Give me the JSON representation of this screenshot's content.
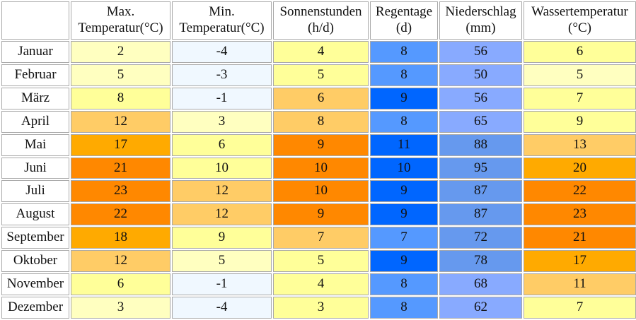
{
  "columns": [
    {
      "line1": "Max.",
      "line2": "Temperatur(°C)"
    },
    {
      "line1": "Min.",
      "line2": "Temperatur(°C)"
    },
    {
      "line1": "Sonnenstunden",
      "line2": "(h/d)"
    },
    {
      "line1": "Regentage",
      "line2": "(d)"
    },
    {
      "line1": "Niederschlag",
      "line2": "(mm)"
    },
    {
      "line1": "Wassertemperatur",
      "line2": "(°C)"
    }
  ],
  "rows": [
    {
      "month": "Januar",
      "values": [
        "2",
        "-4",
        "4",
        "8",
        "56",
        "6"
      ],
      "colors": [
        "#ffffc0",
        "#f0f8ff",
        "#ffff99",
        "#5599ff",
        "#88aaff",
        "#ffff99"
      ]
    },
    {
      "month": "Februar",
      "values": [
        "5",
        "-3",
        "5",
        "8",
        "50",
        "5"
      ],
      "colors": [
        "#ffffc0",
        "#f0f8ff",
        "#ffff99",
        "#5599ff",
        "#88aaff",
        "#ffffc0"
      ]
    },
    {
      "month": "März",
      "values": [
        "8",
        "-1",
        "6",
        "9",
        "56",
        "7"
      ],
      "colors": [
        "#ffff99",
        "#f0f8ff",
        "#ffcc66",
        "#0066ff",
        "#88aaff",
        "#ffff99"
      ]
    },
    {
      "month": "April",
      "values": [
        "12",
        "3",
        "8",
        "8",
        "65",
        "9"
      ],
      "colors": [
        "#ffcc66",
        "#ffffc0",
        "#ffcc66",
        "#5599ff",
        "#88aaff",
        "#ffff99"
      ]
    },
    {
      "month": "Mai",
      "values": [
        "17",
        "6",
        "9",
        "11",
        "88",
        "13"
      ],
      "colors": [
        "#ffaa00",
        "#ffff99",
        "#ff8800",
        "#0066ff",
        "#6699ee",
        "#ffcc66"
      ]
    },
    {
      "month": "Juni",
      "values": [
        "21",
        "10",
        "10",
        "10",
        "95",
        "20"
      ],
      "colors": [
        "#ff8800",
        "#ffff99",
        "#ff8800",
        "#0066ff",
        "#6699ee",
        "#ffaa00"
      ]
    },
    {
      "month": "Juli",
      "values": [
        "23",
        "12",
        "10",
        "9",
        "87",
        "22"
      ],
      "colors": [
        "#ff8800",
        "#ffcc66",
        "#ff8800",
        "#0066ff",
        "#6699ee",
        "#ff8800"
      ]
    },
    {
      "month": "August",
      "values": [
        "22",
        "12",
        "9",
        "9",
        "87",
        "23"
      ],
      "colors": [
        "#ff8800",
        "#ffcc66",
        "#ff8800",
        "#0066ff",
        "#6699ee",
        "#ff8800"
      ]
    },
    {
      "month": "September",
      "values": [
        "18",
        "9",
        "7",
        "7",
        "72",
        "21"
      ],
      "colors": [
        "#ffaa00",
        "#ffff99",
        "#ffcc66",
        "#5599ff",
        "#6699ee",
        "#ff8800"
      ]
    },
    {
      "month": "Oktober",
      "values": [
        "12",
        "5",
        "5",
        "9",
        "78",
        "17"
      ],
      "colors": [
        "#ffcc66",
        "#ffffc0",
        "#ffff99",
        "#0066ff",
        "#6699ee",
        "#ffaa00"
      ]
    },
    {
      "month": "November",
      "values": [
        "6",
        "-1",
        "4",
        "8",
        "68",
        "11"
      ],
      "colors": [
        "#ffff99",
        "#f0f8ff",
        "#ffff99",
        "#5599ff",
        "#88aaff",
        "#ffcc66"
      ]
    },
    {
      "month": "Dezember",
      "values": [
        "3",
        "-4",
        "3",
        "8",
        "62",
        "7"
      ],
      "colors": [
        "#ffffc0",
        "#f0f8ff",
        "#ffff99",
        "#5599ff",
        "#88aaff",
        "#ffff99"
      ]
    }
  ]
}
